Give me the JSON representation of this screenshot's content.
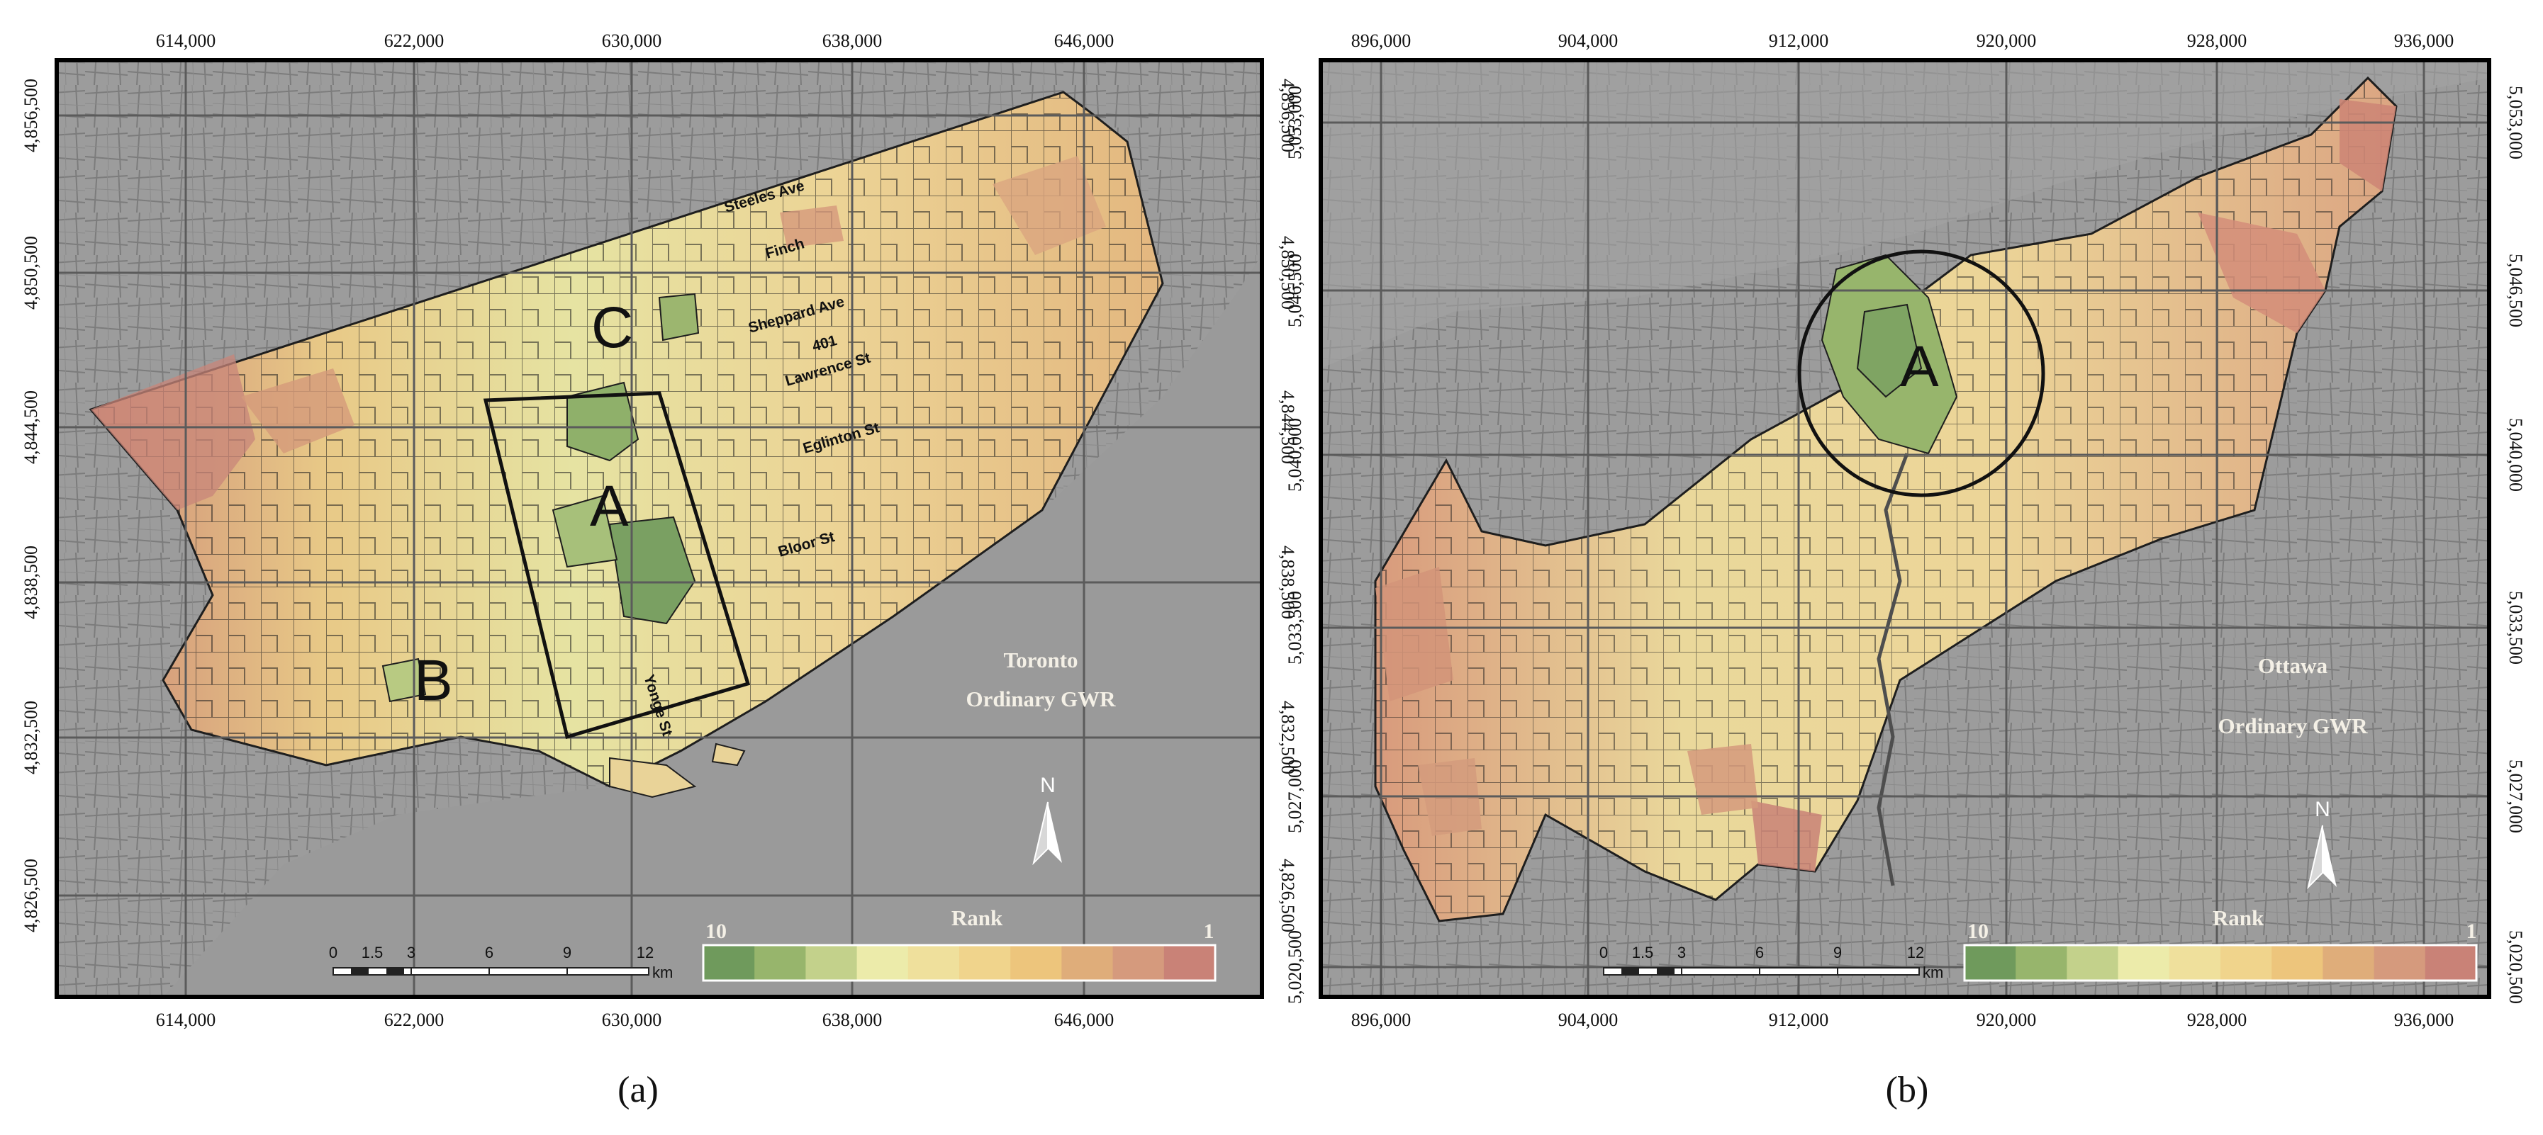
{
  "panels": [
    {
      "id": "toronto",
      "caption": "(a)",
      "title_line1": "Toronto",
      "title_line2": "Ordinary GWR",
      "x_ticks": [
        "614,000",
        "622,000",
        "630,000",
        "638,000",
        "646,000"
      ],
      "y_ticks": [
        "4,856,500",
        "4,850,500",
        "4,844,500",
        "4,838,500",
        "4,832,500",
        "4,826,500"
      ],
      "streets": [
        "Steeles Ave",
        "Finch",
        "Sheppard Ave",
        "401",
        "Lawrence St",
        "Eglinton St",
        "Bloor St",
        "Yonge St"
      ],
      "areas": [
        "A",
        "B",
        "C"
      ],
      "legend": {
        "title": "Rank",
        "left": "10",
        "right": "1"
      },
      "scale": {
        "labels": [
          "0",
          "1.5",
          "3",
          "6",
          "9",
          "12"
        ],
        "unit": "km"
      },
      "north": "N"
    },
    {
      "id": "ottawa",
      "caption": "(b)",
      "title_line1": "Ottawa",
      "title_line2": "Ordinary GWR",
      "x_ticks": [
        "896,000",
        "904,000",
        "912,000",
        "920,000",
        "928,000",
        "936,000"
      ],
      "y_ticks": [
        "5,053,000",
        "5,046,500",
        "5,040,000",
        "5,033,500",
        "5,027,000",
        "5,020,500"
      ],
      "areas": [
        "A"
      ],
      "legend": {
        "title": "Rank",
        "left": "10",
        "right": "1"
      },
      "scale": {
        "labels": [
          "0",
          "1.5",
          "3",
          "6",
          "9",
          "12"
        ],
        "unit": "km"
      },
      "north": "N"
    }
  ],
  "rank_colors": [
    "#6f9a5c",
    "#97b56c",
    "#c3d18b",
    "#ecebaa",
    "#efe09c",
    "#f0d48c",
    "#edc57c",
    "#dfad7a",
    "#d59a7d",
    "#c98277"
  ]
}
